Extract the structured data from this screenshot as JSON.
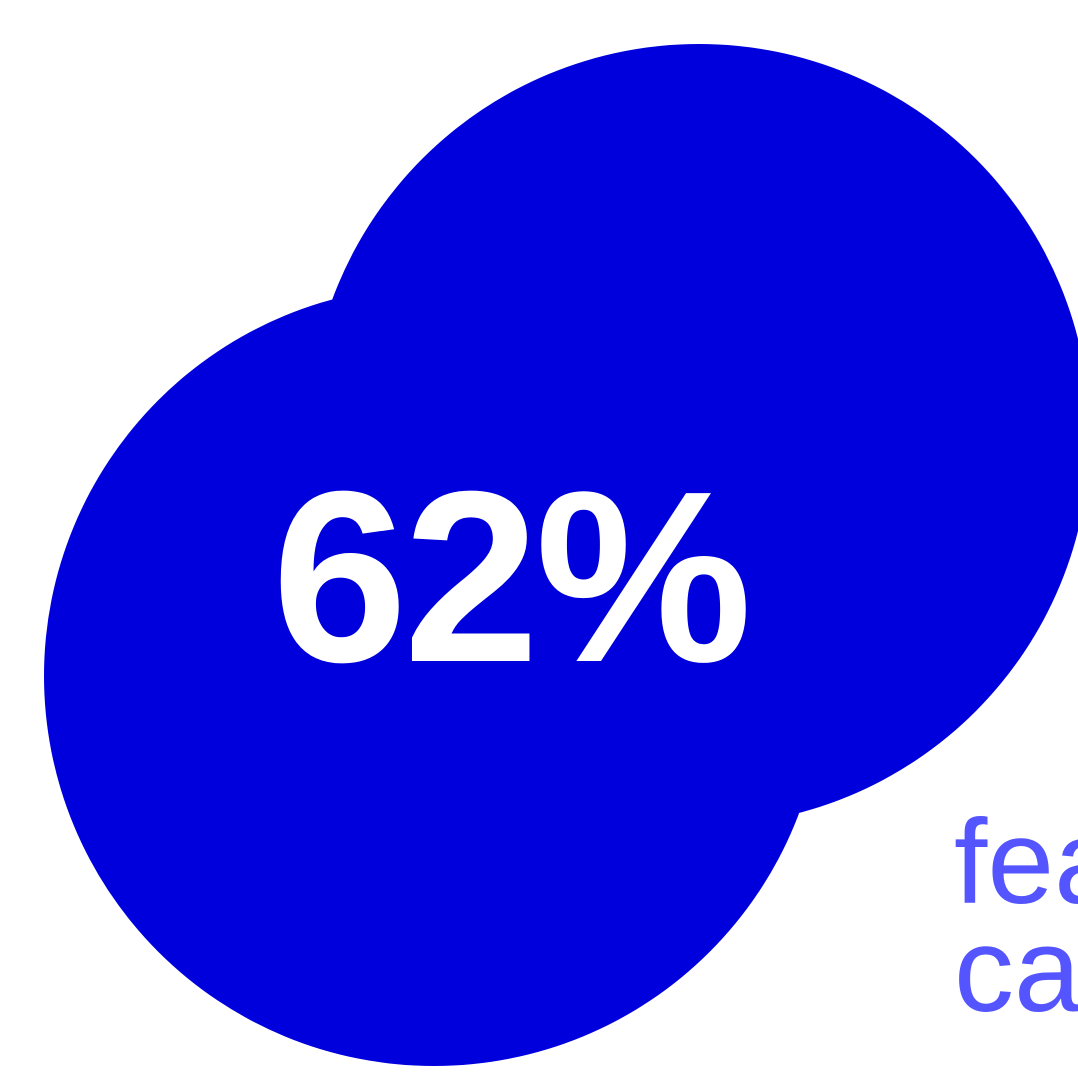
{
  "stat": {
    "value": "62%"
  },
  "caption": {
    "line1": "fea",
    "line2": "ca"
  },
  "colors": {
    "circle": "#0000dc",
    "stat_text": "#ffffff",
    "caption_text": "#5555ff",
    "background": "#ffffff"
  }
}
